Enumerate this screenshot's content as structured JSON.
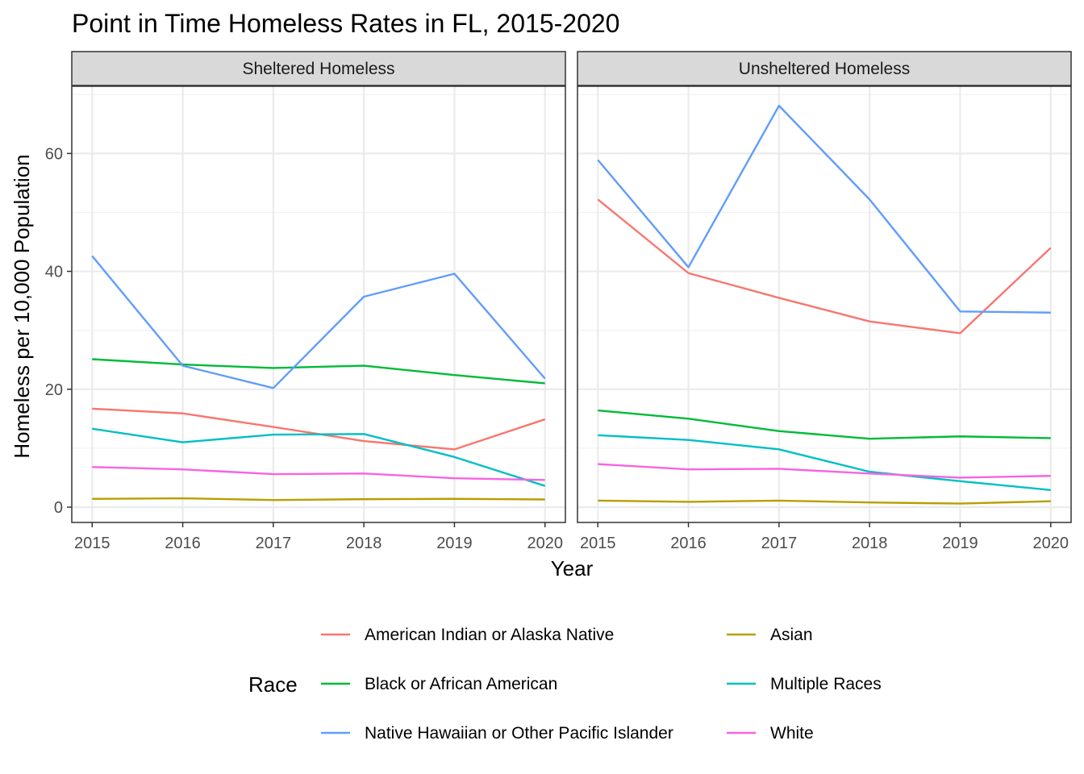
{
  "chart_data": {
    "type": "line",
    "title": "Point in Time Homeless Rates in FL, 2015-2020",
    "xlabel": "Year",
    "ylabel": "Homeless per 10,000 Population",
    "x": [
      2015,
      2016,
      2017,
      2018,
      2019,
      2020
    ],
    "ylim": [
      -2.6,
      71.4
    ],
    "y_ticks": [
      0,
      20,
      40,
      60
    ],
    "grid": true,
    "legend": {
      "title": "Race",
      "position": "bottom",
      "columns": 2
    },
    "series_colors": {
      "American Indian or Alaska Native": "#F8766D",
      "Asian": "#B79F00",
      "Black or African American": "#00BA38",
      "Multiple Races": "#00BFC4",
      "Native Hawaiian or Other Pacific Islander": "#619CFF",
      "White": "#F564E3"
    },
    "panels": [
      {
        "label": "Sheltered Homeless",
        "series": [
          {
            "name": "American Indian or Alaska Native",
            "values": [
              16.7,
              15.9,
              13.6,
              11.2,
              9.8,
              14.9
            ]
          },
          {
            "name": "Asian",
            "values": [
              1.4,
              1.5,
              1.2,
              1.35,
              1.4,
              1.3
            ]
          },
          {
            "name": "Black or African American",
            "values": [
              25.1,
              24.2,
              23.6,
              24.0,
              22.4,
              21.0
            ]
          },
          {
            "name": "Multiple Races",
            "values": [
              13.3,
              11.0,
              12.3,
              12.4,
              8.5,
              3.6
            ]
          },
          {
            "name": "Native Hawaiian or Other Pacific Islander",
            "values": [
              42.6,
              24.0,
              20.2,
              35.7,
              39.6,
              21.8
            ]
          },
          {
            "name": "White",
            "values": [
              6.8,
              6.4,
              5.6,
              5.7,
              4.9,
              4.6
            ]
          }
        ]
      },
      {
        "label": "Unsheltered Homeless",
        "series": [
          {
            "name": "American Indian or Alaska Native",
            "values": [
              52.2,
              39.7,
              35.5,
              31.5,
              29.5,
              44.0
            ]
          },
          {
            "name": "Asian",
            "values": [
              1.1,
              0.9,
              1.1,
              0.8,
              0.6,
              1.0
            ]
          },
          {
            "name": "Black or African American",
            "values": [
              16.4,
              15.0,
              12.9,
              11.6,
              12.0,
              11.7
            ]
          },
          {
            "name": "Multiple Races",
            "values": [
              12.2,
              11.4,
              9.8,
              6.0,
              4.4,
              2.9
            ]
          },
          {
            "name": "Native Hawaiian or Other Pacific Islander",
            "values": [
              58.9,
              40.7,
              68.1,
              52.2,
              33.2,
              33.0
            ]
          },
          {
            "name": "White",
            "values": [
              7.3,
              6.4,
              6.5,
              5.7,
              5.0,
              5.3
            ]
          }
        ]
      }
    ],
    "legend_entries": [
      "American Indian or Alaska Native",
      "Asian",
      "Black or African American",
      "Multiple Races",
      "Native Hawaiian or Other Pacific Islander",
      "White"
    ]
  }
}
